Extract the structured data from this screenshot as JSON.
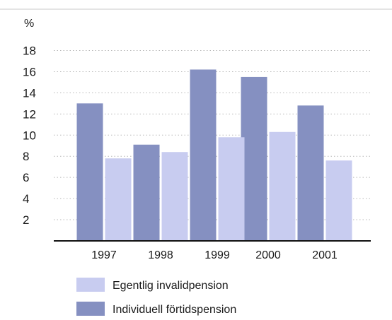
{
  "chart_data": {
    "type": "bar",
    "categories": [
      "1997",
      "1998",
      "1999",
      "2000",
      "2001"
    ],
    "series": [
      {
        "name": "Individuell förtidspension",
        "values": [
          13.0,
          9.1,
          16.2,
          15.5,
          12.8
        ],
        "color": "#8590c1"
      },
      {
        "name": "Egentlig invalidpension",
        "values": [
          7.8,
          8.4,
          9.8,
          10.3,
          7.6
        ],
        "color": "#c8ccf0"
      }
    ],
    "unit_label": "%",
    "ylim": [
      0,
      18
    ],
    "yticks": [
      2,
      4,
      6,
      8,
      10,
      12,
      14,
      16,
      18
    ],
    "grid": "dotted-horizontal",
    "legend_placement": "bottom-left",
    "legend_order": [
      1,
      0
    ]
  }
}
